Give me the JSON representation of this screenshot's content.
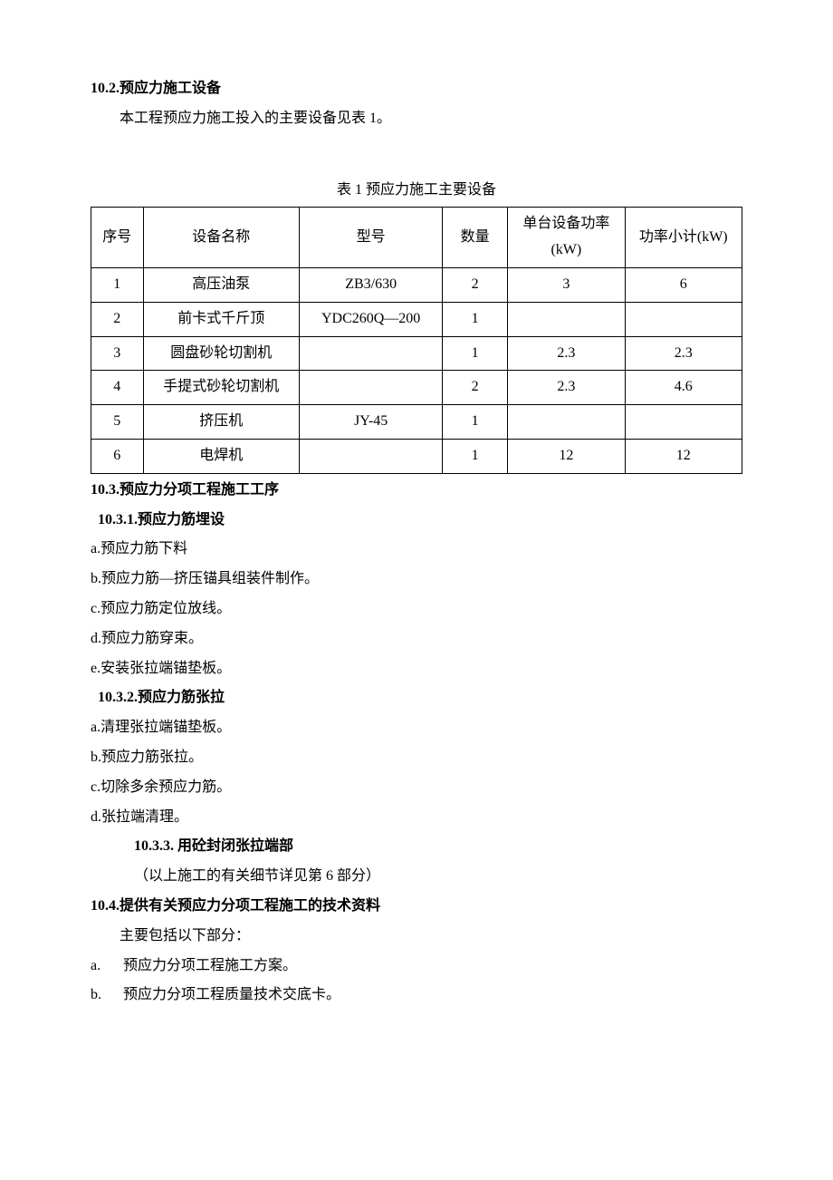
{
  "s10_2": {
    "heading": "10.2.预应力施工设备",
    "intro": "本工程预应力施工投入的主要设备见表 1。"
  },
  "table1": {
    "caption": "表 1   预应力施工主要设备",
    "headers": {
      "seq": "序号",
      "name": "设备名称",
      "model": "型号",
      "qty": "数量",
      "power": "单台设备功率(kW)",
      "subtotal": "功率小计(kW)"
    },
    "rows": [
      {
        "seq": "1",
        "name": "高压油泵",
        "model": "ZB3/630",
        "qty": "2",
        "power": "3",
        "subtotal": "6"
      },
      {
        "seq": "2",
        "name": "前卡式千斤顶",
        "model": "YDC260Q—200",
        "qty": "1",
        "power": "",
        "subtotal": ""
      },
      {
        "seq": "3",
        "name": "圆盘砂轮切割机",
        "model": "",
        "qty": "1",
        "power": "2.3",
        "subtotal": "2.3"
      },
      {
        "seq": "4",
        "name": "手提式砂轮切割机",
        "model": "",
        "qty": "2",
        "power": "2.3",
        "subtotal": "4.6"
      },
      {
        "seq": "5",
        "name": "挤压机",
        "model": "JY-45",
        "qty": "1",
        "power": "",
        "subtotal": ""
      },
      {
        "seq": "6",
        "name": "电焊机",
        "model": "",
        "qty": "1",
        "power": "12",
        "subtotal": "12"
      }
    ]
  },
  "s10_3": {
    "heading": "10.3.预应力分项工程施工工序",
    "s10_3_1": {
      "heading": "10.3.1.预应力筋埋设",
      "items": [
        "a.预应力筋下料",
        "b.预应力筋—挤压锚具组装件制作。",
        "c.预应力筋定位放线。",
        "d.预应力筋穿束。",
        "e.安装张拉端锚垫板。"
      ]
    },
    "s10_3_2": {
      "heading": "10.3.2.预应力筋张拉",
      "items": [
        "a.清理张拉端锚垫板。",
        "b.预应力筋张拉。",
        "c.切除多余预应力筋。",
        "d.张拉端清理。"
      ]
    },
    "s10_3_3": {
      "heading": "10.3.3. 用砼封闭张拉端部",
      "note": "（以上施工的有关细节详见第 6 部分）"
    }
  },
  "s10_4": {
    "heading": "10.4.提供有关预应力分项工程施工的技术资料",
    "intro": "主要包括以下部分：",
    "items": [
      {
        "marker": "a.",
        "text": "预应力分项工程施工方案。"
      },
      {
        "marker": "b.",
        "text": "预应力分项工程质量技术交底卡。"
      }
    ]
  }
}
